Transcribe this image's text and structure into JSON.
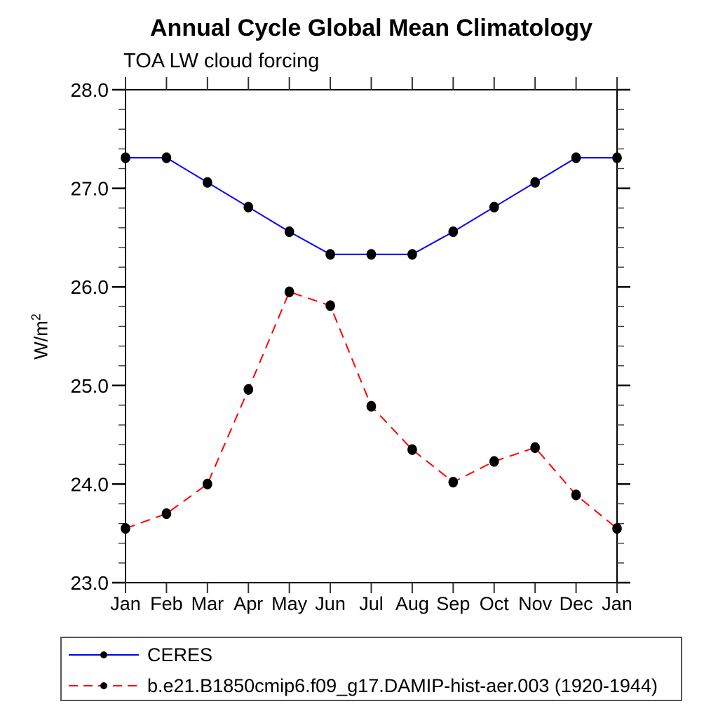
{
  "title": "Annual Cycle Global Mean Climatology",
  "subtitle": "TOA LW cloud forcing",
  "chart_data": {
    "type": "line",
    "x_categories": [
      "Jan",
      "Feb",
      "Mar",
      "Apr",
      "May",
      "Jun",
      "Jul",
      "Aug",
      "Sep",
      "Oct",
      "Nov",
      "Dec",
      "Jan"
    ],
    "series": [
      {
        "name": "CERES",
        "color": "#0000ff",
        "style": "solid",
        "marker": "filled-circle",
        "marker_color": "#000000",
        "values": [
          27.31,
          27.31,
          27.06,
          26.81,
          26.56,
          26.33,
          26.33,
          26.33,
          26.56,
          26.81,
          27.06,
          27.31,
          27.31
        ]
      },
      {
        "name": "b.e21.B1850cmip6.f09_g17.DAMIP-hist-aer.003 (1920-1944)",
        "color": "#ff0000",
        "style": "dashed",
        "marker": "filled-circle",
        "marker_color": "#000000",
        "values": [
          23.55,
          23.7,
          24.0,
          24.96,
          25.95,
          25.81,
          24.79,
          24.35,
          24.02,
          24.23,
          24.37,
          23.89,
          23.55
        ]
      }
    ],
    "ylabel_base": "W/m",
    "ylabel_exp": "2",
    "ylim": [
      23.0,
      28.0
    ],
    "y_major_ticks": [
      23.0,
      24.0,
      25.0,
      26.0,
      27.0,
      28.0
    ],
    "y_major_tick_labels": [
      "23.0",
      "24.0",
      "25.0",
      "26.0",
      "27.0",
      "28.0"
    ],
    "y_minor_step": 0.2,
    "grid": false,
    "legend_position": "bottom"
  }
}
